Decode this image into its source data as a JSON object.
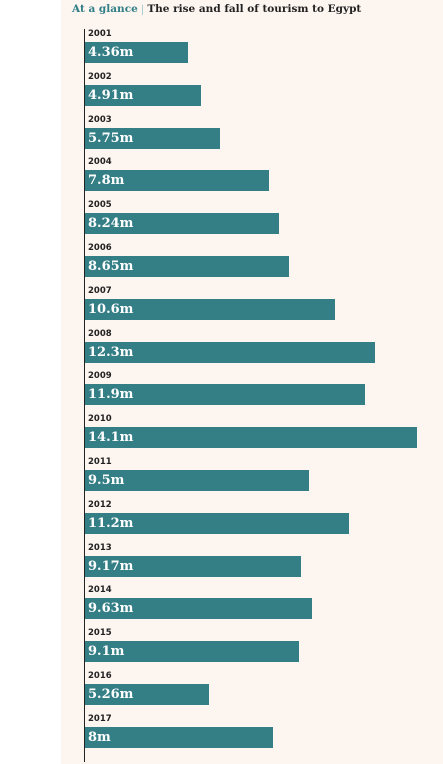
{
  "header": {
    "kicker": "At a glance",
    "separator": "|",
    "title": "The rise and fall of tourism to Egypt"
  },
  "colors": {
    "bar": "#347e86",
    "kicker": "#2f7f86",
    "panel_background": "#fdf5f0"
  },
  "chart_data": {
    "type": "bar",
    "orientation": "horizontal",
    "categories": [
      "2001",
      "2002",
      "2003",
      "2004",
      "2005",
      "2006",
      "2007",
      "2008",
      "2009",
      "2010",
      "2011",
      "2012",
      "2013",
      "2014",
      "2015",
      "2016",
      "2017"
    ],
    "values": [
      4.36,
      4.91,
      5.75,
      7.8,
      8.24,
      8.65,
      10.6,
      12.3,
      11.9,
      14.1,
      9.5,
      11.2,
      9.17,
      9.63,
      9.1,
      5.26,
      8
    ],
    "labels": [
      "4.36m",
      "4.91m",
      "5.75m",
      "7.8m",
      "8.24m",
      "8.65m",
      "10.6m",
      "12.3m",
      "11.9m",
      "14.1m",
      "9.5m",
      "11.2m",
      "9.17m",
      "9.63m",
      "9.1m",
      "5.26m",
      "8m"
    ],
    "xlim": [
      0,
      14.1
    ],
    "grid": false,
    "legend": "none"
  }
}
